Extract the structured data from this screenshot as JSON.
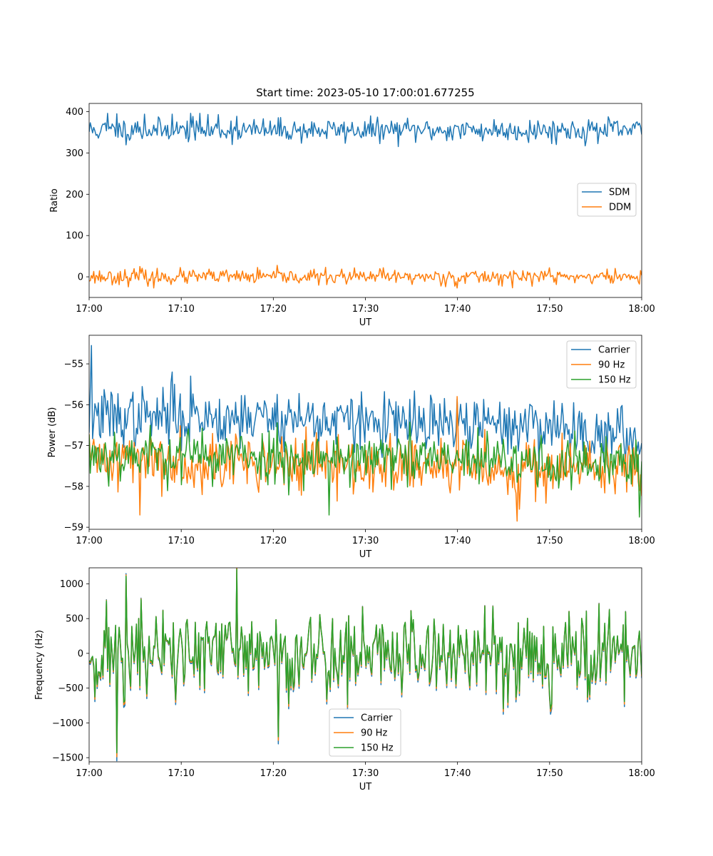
{
  "figure": {
    "title": "Start time: 2023-05-10 17:00:01.677255"
  },
  "chart_data": [
    {
      "type": "line",
      "title": "Start time: 2023-05-10 17:00:01.677255",
      "xlabel": "UT",
      "ylabel": "Ratio",
      "xlim": [
        "17:00",
        "18:00"
      ],
      "ylim": [
        -50,
        420
      ],
      "xticks": [
        "17:00",
        "17:10",
        "17:20",
        "17:30",
        "17:40",
        "17:50",
        "18:00"
      ],
      "yticks": [
        400,
        300,
        200,
        100,
        0
      ],
      "ytick_labels": [
        "400",
        "300",
        "200",
        "100",
        "0"
      ],
      "legend_position": "center-right",
      "grid": false,
      "series": [
        {
          "name": "SDM",
          "color": "#1f77b4",
          "mean": 355,
          "spread": 14,
          "seed": 11,
          "points": 480,
          "spikes": [
            [
              2,
              396
            ],
            [
              3,
              395
            ],
            [
              6,
              394
            ],
            [
              9,
              394
            ],
            [
              11,
              396
            ],
            [
              12,
              396
            ],
            [
              14,
              393
            ],
            [
              5,
              373
            ],
            [
              16,
              389
            ]
          ]
        },
        {
          "name": "DDM",
          "color": "#ff7f0e",
          "mean": 0,
          "spread": 9,
          "seed": 23,
          "points": 480,
          "spikes": [
            [
              5.5,
              25
            ],
            [
              7,
              -27
            ],
            [
              30,
              -10
            ],
            [
              32,
              22
            ],
            [
              40,
              -27
            ],
            [
              50,
              22
            ]
          ]
        }
      ]
    },
    {
      "type": "line",
      "title": "",
      "xlabel": "UT",
      "ylabel": "Power (dB)",
      "xlim": [
        "17:00",
        "18:00"
      ],
      "ylim": [
        -59.05,
        -54.3
      ],
      "xticks": [
        "17:00",
        "17:10",
        "17:20",
        "17:30",
        "17:40",
        "17:50",
        "18:00"
      ],
      "yticks": [
        -55,
        -56,
        -57,
        -58,
        -59
      ],
      "ytick_labels": [
        "−55",
        "−56",
        "−57",
        "−58",
        "−59"
      ],
      "legend_position": "upper right",
      "grid": false,
      "series": [
        {
          "name": "Carrier",
          "color": "#1f77b4",
          "mean": -56.5,
          "spread": 0.35,
          "seed": 37,
          "points": 480,
          "drift": [
            [
              0,
              -56.3
            ],
            [
              20,
              -56.3
            ],
            [
              35,
              -56.5
            ],
            [
              50,
              -56.5
            ],
            [
              60,
              -56.9
            ]
          ],
          "spikes": [
            [
              0.3,
              -54.55
            ],
            [
              9,
              -55.2
            ],
            [
              11,
              -55.3
            ]
          ]
        },
        {
          "name": "90 Hz",
          "color": "#ff7f0e",
          "mean": -57.5,
          "spread": 0.35,
          "seed": 41,
          "points": 480,
          "drift": [
            [
              0,
              -57.3
            ],
            [
              30,
              -57.5
            ],
            [
              60,
              -57.6
            ]
          ],
          "spikes": [
            [
              5.5,
              -58.7
            ],
            [
              40,
              -55.8
            ],
            [
              46.5,
              -58.85
            ]
          ]
        },
        {
          "name": "150 Hz",
          "color": "#2ca02c",
          "mean": -57.3,
          "spread": 0.33,
          "seed": 53,
          "points": 480,
          "drift": [
            [
              0,
              -57.2
            ],
            [
              30,
              -57.3
            ],
            [
              60,
              -57.5
            ]
          ],
          "spikes": [
            [
              26,
              -58.7
            ],
            [
              59.8,
              -58.75
            ]
          ]
        }
      ]
    },
    {
      "type": "line",
      "title": "",
      "xlabel": "UT",
      "ylabel": "Frequency (Hz)",
      "xlim": [
        "17:00",
        "18:00"
      ],
      "ylim": [
        -1560,
        1230
      ],
      "xticks": [
        "17:00",
        "17:10",
        "17:20",
        "17:30",
        "17:40",
        "17:50",
        "18:00"
      ],
      "yticks": [
        1000,
        500,
        0,
        -500,
        -1000,
        -1500
      ],
      "ytick_labels": [
        "1000",
        "500",
        "0",
        "−500",
        "−1000",
        "−1500"
      ],
      "legend_position": "lower center",
      "grid": false,
      "base": {
        "mean": 0,
        "spread": 330,
        "seed": 71,
        "points": 480,
        "spikes": [
          [
            3,
            -1430
          ],
          [
            4,
            1110
          ],
          [
            16,
            1210
          ],
          [
            20.5,
            -1200
          ]
        ]
      },
      "series": [
        {
          "name": "Carrier",
          "color": "#1f77b4",
          "scale": 1.06,
          "offset": -30
        },
        {
          "name": "90 Hz",
          "color": "#ff7f0e",
          "scale": 1.03,
          "offset": -15
        },
        {
          "name": "150 Hz",
          "color": "#2ca02c",
          "scale": 1.0,
          "offset": 0
        }
      ]
    }
  ]
}
